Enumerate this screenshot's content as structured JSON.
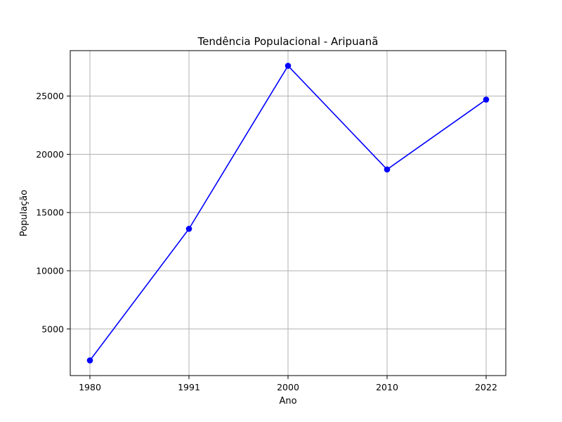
{
  "chart_data": {
    "type": "line",
    "title": "Tendência Populacional - Aripuanã",
    "xlabel": "Ano",
    "ylabel": "População",
    "categories": [
      "1980",
      "1991",
      "2000",
      "2010",
      "2022"
    ],
    "series": [
      {
        "values": [
          2300,
          13600,
          27600,
          18700,
          24700
        ]
      }
    ],
    "ylim": [
      1000,
      28900
    ],
    "yticks": [
      5000,
      10000,
      15000,
      20000,
      25000
    ],
    "grid": true,
    "line_color": "#0000ff",
    "marker": "circle"
  }
}
